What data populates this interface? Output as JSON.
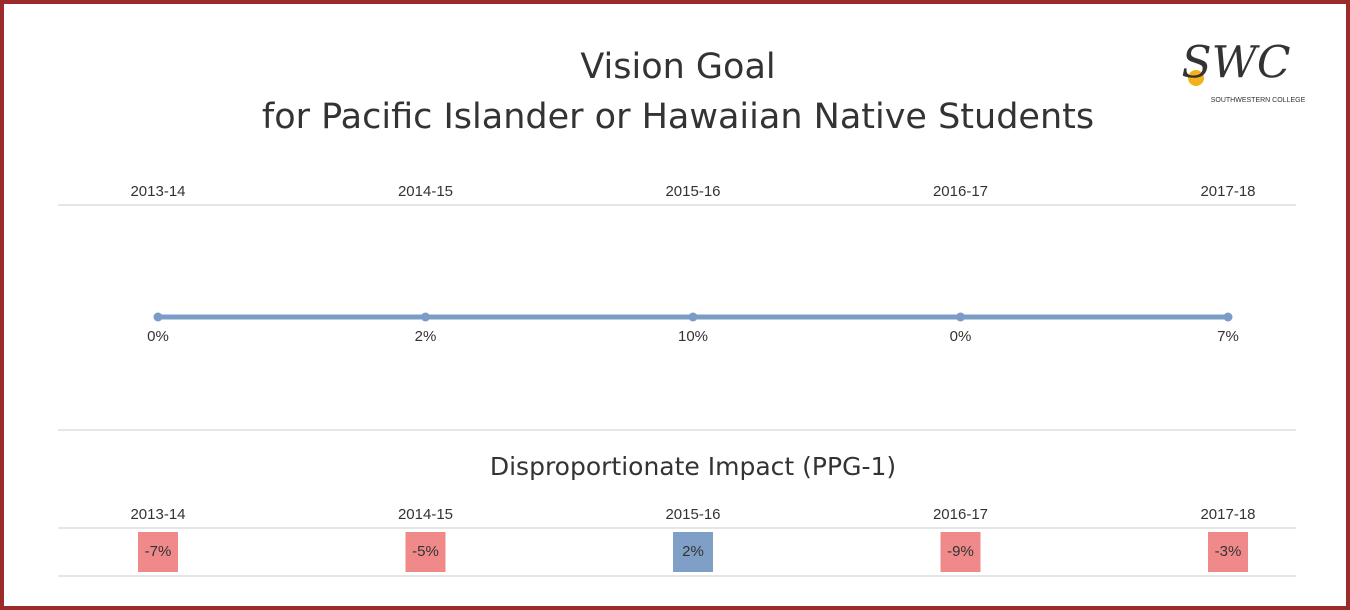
{
  "header": {
    "title": "Vision Goal",
    "subtitle": "for Pacific Islander or Hawaiian Native Students",
    "logo": {
      "mark": "SWC",
      "name": "SOUTHWESTERN COLLEGE"
    }
  },
  "chart_data": [
    {
      "type": "line",
      "categories": [
        "2013-14",
        "2014-15",
        "2015-16",
        "2016-17",
        "2017-18"
      ],
      "values": [
        0,
        2,
        10,
        0,
        7
      ],
      "value_labels": [
        "0%",
        "2%",
        "10%",
        "0%",
        "7%"
      ],
      "color": "#7b9cc6"
    },
    {
      "type": "heatmap",
      "title": "Disproportionate Impact (PPG-1)",
      "categories": [
        "2013-14",
        "2014-15",
        "2015-16",
        "2016-17",
        "2017-18"
      ],
      "values": [
        -7,
        -5,
        2,
        -9,
        -3
      ],
      "value_labels": [
        "-7%",
        "-5%",
        "2%",
        "-9%",
        "-3%"
      ],
      "negative_color": "#f08a8a",
      "positive_color": "#7f9fc6"
    }
  ]
}
